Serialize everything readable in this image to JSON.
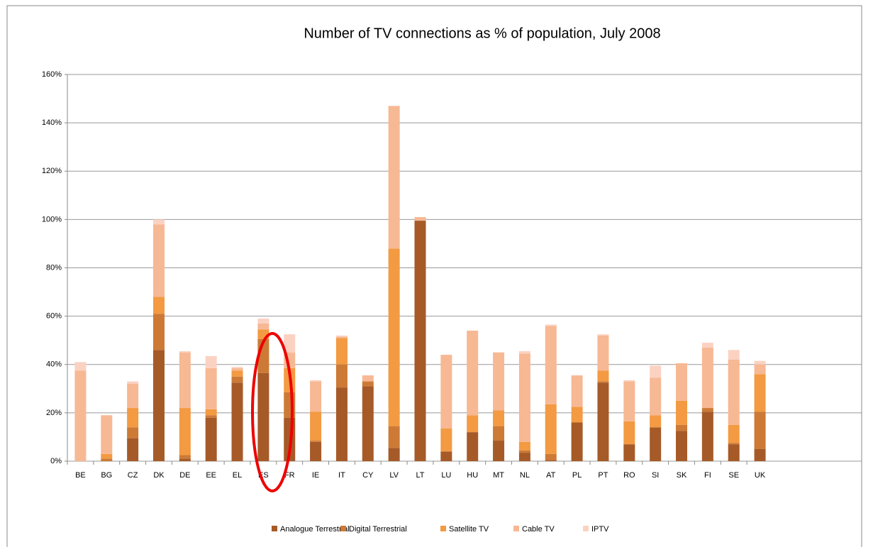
{
  "chart_data": {
    "type": "stacked_bar",
    "title": "Number of TV connections as % of population, July 2008",
    "categories": [
      "BE",
      "BG",
      "CZ",
      "DK",
      "DE",
      "EE",
      "EL",
      "ES",
      "FR",
      "IE",
      "IT",
      "CY",
      "LV",
      "LT",
      "LU",
      "HU",
      "MT",
      "NL",
      "AT",
      "PL",
      "PT",
      "RO",
      "SI",
      "SK",
      "FI",
      "SE",
      "UK"
    ],
    "series": [
      {
        "name": "Analogue Terrestrial",
        "color": "#a65a28",
        "values": [
          0,
          0,
          9.5,
          46,
          1,
          18,
          32.5,
          36.5,
          18,
          8,
          30.5,
          31,
          5.5,
          99.5,
          4,
          12,
          8.5,
          3.5,
          0.5,
          16,
          32.5,
          7,
          14,
          12.5,
          20.5,
          7,
          5
        ]
      },
      {
        "name": "Digital Terrestrial",
        "color": "#cc7a36",
        "values": [
          0,
          1,
          4.5,
          15,
          1.5,
          1,
          2.5,
          14,
          10.5,
          0.5,
          9.5,
          2,
          9,
          0,
          0,
          0,
          6,
          1,
          2.5,
          0,
          0.5,
          0,
          0,
          2.5,
          1.5,
          0.5,
          15.5
        ]
      },
      {
        "name": "Satellite TV",
        "color": "#f39a42",
        "values": [
          0,
          2,
          8,
          7,
          19.5,
          2.5,
          2.5,
          4,
          10,
          12,
          11,
          0,
          73.5,
          0,
          9.5,
          7,
          6.5,
          3.5,
          20.5,
          6.5,
          4.5,
          9.5,
          5,
          10,
          0,
          7.5,
          15.5
        ]
      },
      {
        "name": "Cable TV",
        "color": "#f7b894",
        "values": [
          37.5,
          16,
          10,
          30,
          23,
          17,
          1,
          2.5,
          6.5,
          12.5,
          0.5,
          2.5,
          59,
          1.5,
          30.5,
          35,
          24,
          36.5,
          32.5,
          13,
          14.5,
          16.5,
          15.5,
          15.5,
          25,
          27,
          4
        ]
      },
      {
        "name": "IPTV",
        "color": "#fbd2c2",
        "values": [
          3.5,
          0,
          1,
          2,
          0.5,
          5,
          0.5,
          2,
          7.5,
          0.5,
          0.5,
          0,
          0,
          0,
          0,
          0,
          0,
          1,
          0.5,
          0,
          0.5,
          0.5,
          5,
          0,
          2,
          4,
          1.5
        ]
      }
    ],
    "ylim": [
      0,
      160
    ],
    "yticks": [
      {
        "value": 0,
        "label": "0%"
      },
      {
        "value": 20,
        "label": "20%"
      },
      {
        "value": 40,
        "label": "40%"
      },
      {
        "value": 60,
        "label": "60%"
      },
      {
        "value": 80,
        "label": "80%"
      },
      {
        "value": 100,
        "label": "100%"
      },
      {
        "value": 120,
        "label": "120%"
      },
      {
        "value": 140,
        "label": "140%"
      },
      {
        "value": 160,
        "label": "160%"
      }
    ],
    "grid": true,
    "legend": "bottom"
  }
}
